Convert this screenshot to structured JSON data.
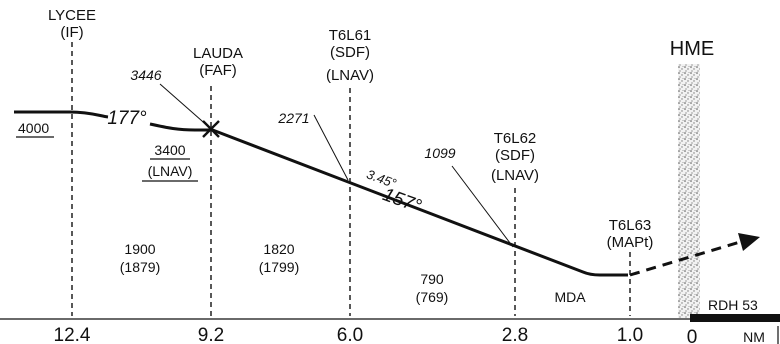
{
  "fixes": {
    "lycee": {
      "name": "LYCEE",
      "role": "(IF)",
      "distance": "12.4"
    },
    "lauda": {
      "name": "LAUDA",
      "role": "(FAF)",
      "altitude": "3446",
      "distance": "9.2"
    },
    "t6l61": {
      "name": "T6L61",
      "role": "(SDF)",
      "note": "(LNAV)",
      "altitude": "2271",
      "distance": "6.0"
    },
    "t6l62": {
      "name": "T6L62",
      "role": "(SDF)",
      "note": "(LNAV)",
      "altitude": "1099",
      "distance": "2.8"
    },
    "t6l63": {
      "name": "T6L63",
      "role": "(MAPt)",
      "distance": "1.0"
    }
  },
  "altitudes": {
    "initial": "4000",
    "step": "3400",
    "step_note": "(LNAV)"
  },
  "course": {
    "intermediate": "177°",
    "final": "157°",
    "glidepath": "3.45°"
  },
  "segments": [
    {
      "alt": "1900",
      "hat": "(1879)"
    },
    {
      "alt": "1820",
      "hat": "(1799)"
    },
    {
      "alt": "790",
      "hat": "(769)"
    }
  ],
  "mda_label": "MDA",
  "runway": {
    "label": "HME",
    "rdh": "RDH 53",
    "zero": "0",
    "nm": "NM"
  }
}
